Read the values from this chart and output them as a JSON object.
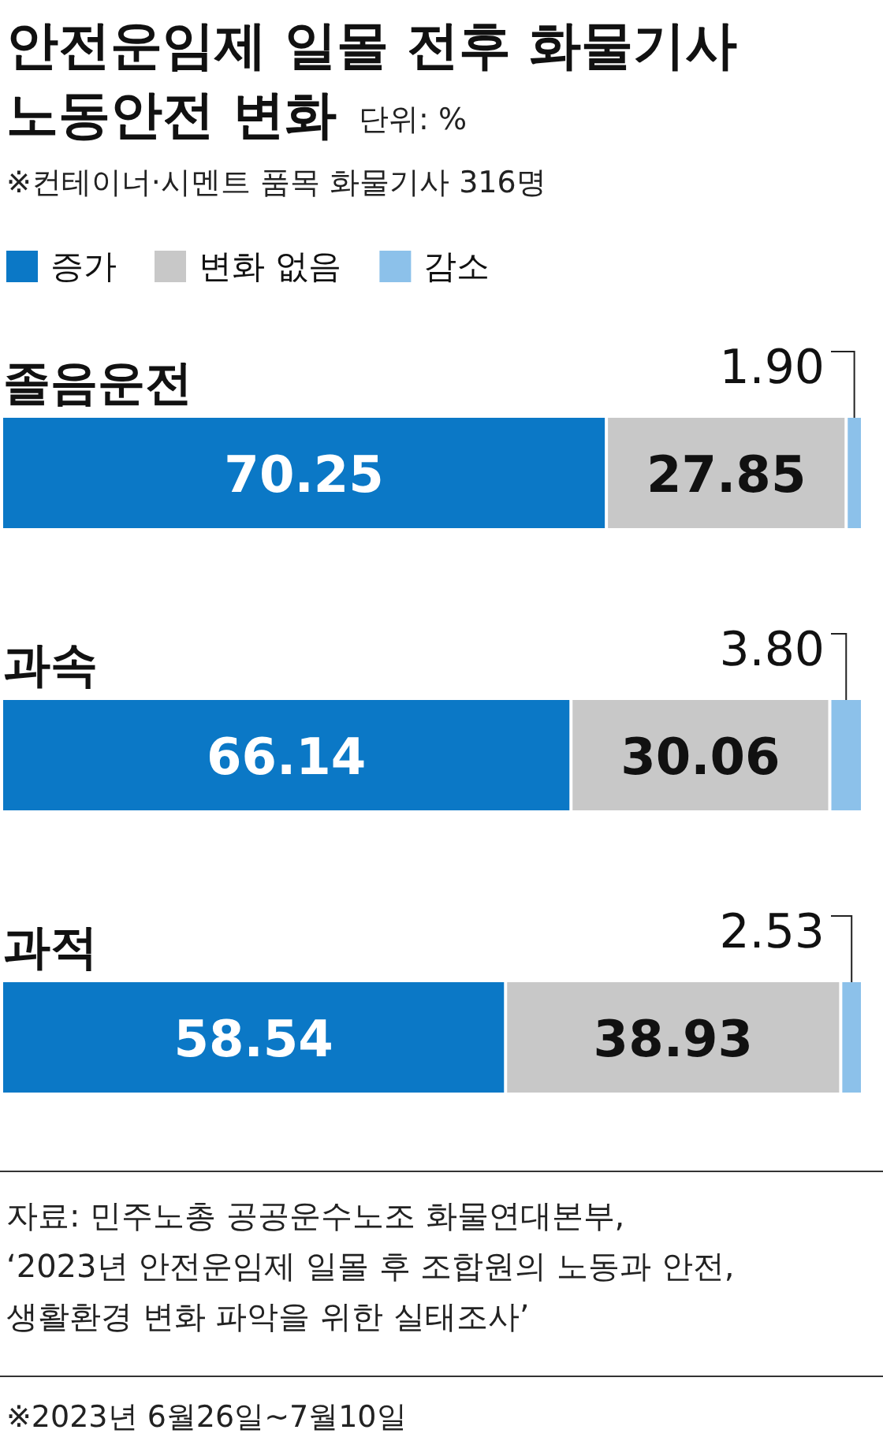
{
  "chart_data": {
    "type": "bar",
    "orientation": "horizontal",
    "stacked": true,
    "title": "안전운임제 일몰 전후 화물기사\n노동안전 변화",
    "subtitle": "단위: %",
    "categories": [
      "졸음운전",
      "과속",
      "과적"
    ],
    "xlim": [
      0,
      100
    ],
    "tick_labels": false,
    "legend": "top left",
    "series": [
      {
        "name": "증가",
        "color": "#0b78c6",
        "values": [
          70.25,
          66.14,
          58.54
        ],
        "value_labels": [
          "70.25",
          "66.14",
          "58.54"
        ]
      },
      {
        "name": "변화 없음",
        "color": "#c8c8c8",
        "values": [
          27.85,
          30.06,
          38.93
        ],
        "value_labels": [
          "27.85",
          "30.06",
          "38.93"
        ]
      },
      {
        "name": "감소",
        "color": "#8cc1ea",
        "values": [
          1.9,
          3.8,
          2.53
        ],
        "value_labels": [
          "1.90",
          "3.80",
          "2.53"
        ]
      }
    ],
    "annotations": [
      "※컨테이너·시멘트 품목 화물기사 316명",
      "자료: 민주노총 공공운수노조 화물연대본부,",
      "‘2023년 안전운임제 일몰 후 조합원의 노동과 안전,",
      "생활환경 변화 파악을 위한 실태조사’",
      "※2023년 6월26일~7월10일"
    ]
  }
}
